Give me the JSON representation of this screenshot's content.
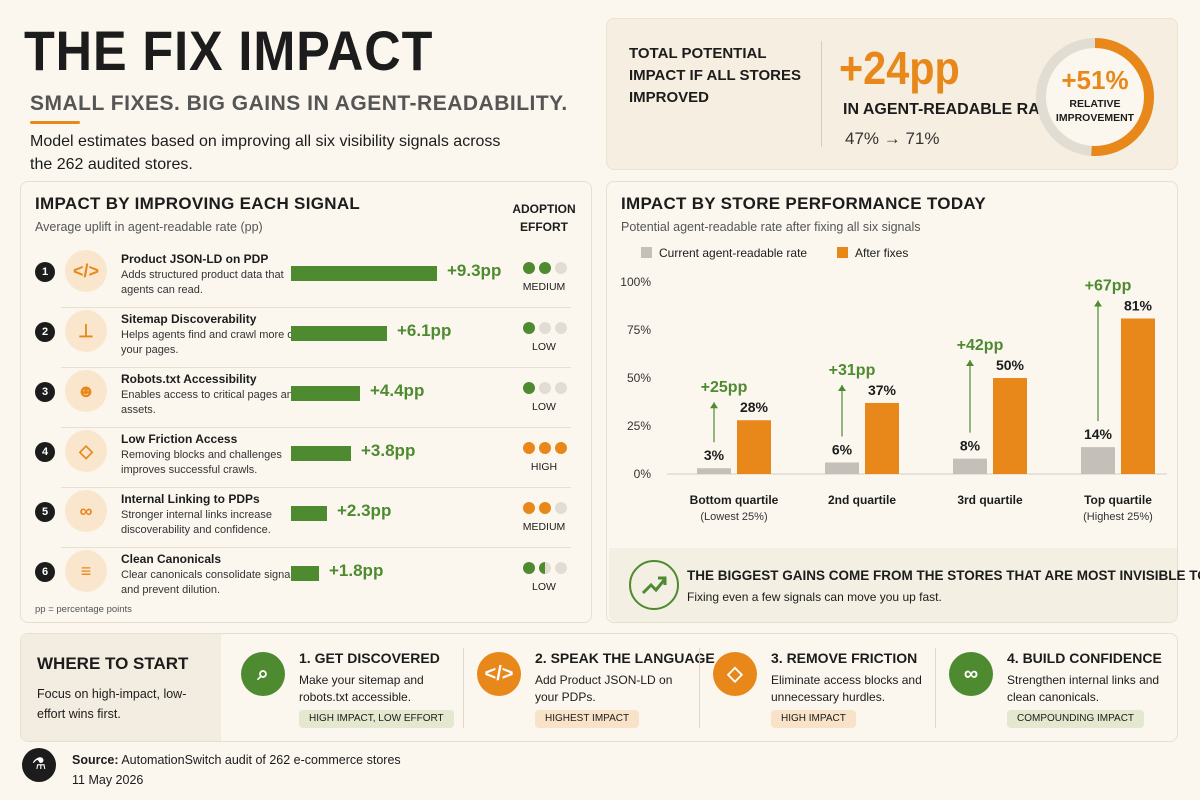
{
  "header": {
    "title": "THE FIX IMPACT",
    "subtitle": "SMALL FIXES. BIG GAINS IN AGENT-READABILITY.",
    "intro": "Model estimates based on improving all six visibility signals across the 262 audited stores."
  },
  "total": {
    "label": "TOTAL POTENTIAL IMPACT IF ALL STORES IMPROVED",
    "value": "+24pp",
    "rate_label": "IN AGENT-READABLE RATE",
    "change": "47% → 71%",
    "relative_value": "+51%",
    "relative_label": "RELATIVE IMPROVEMENT",
    "relative_fraction": 0.51
  },
  "signals": {
    "title": "IMPACT BY IMPROVING EACH SIGNAL",
    "subtitle": "Average uplift in agent-readable rate (pp)",
    "effort_header": "ADOPTION EFFORT",
    "footnote": "pp = percentage points",
    "items": [
      {
        "num": "1",
        "icon": "code-icon",
        "glyph": "</>",
        "name": "Product JSON-LD on PDP",
        "desc": "Adds structured product data that agents can read.",
        "value": 9.3,
        "label": "+9.3pp",
        "effort": "MEDIUM",
        "effort_level": 2,
        "effort_color": "#4e8a30"
      },
      {
        "num": "2",
        "icon": "sitemap-icon",
        "glyph": "⊥",
        "name": "Sitemap Discoverability",
        "desc": "Helps agents find and crawl more of your pages.",
        "value": 6.1,
        "label": "+6.1pp",
        "effort": "LOW",
        "effort_level": 1,
        "effort_color": "#4e8a30"
      },
      {
        "num": "3",
        "icon": "robot-icon",
        "glyph": "☻",
        "name": "Robots.txt Accessibility",
        "desc": "Enables access to critical pages and assets.",
        "value": 4.4,
        "label": "+4.4pp",
        "effort": "LOW",
        "effort_level": 1,
        "effort_color": "#4e8a30"
      },
      {
        "num": "4",
        "icon": "shield-icon",
        "glyph": "◇",
        "name": "Low Friction Access",
        "desc": "Removing blocks and challenges improves successful crawls.",
        "value": 3.8,
        "label": "+3.8pp",
        "effort": "HIGH",
        "effort_level": 3,
        "effort_color": "#e8881a"
      },
      {
        "num": "5",
        "icon": "link-icon",
        "glyph": "∞",
        "name": "Internal Linking to PDPs",
        "desc": "Stronger internal links increase discoverability and confidence.",
        "value": 2.3,
        "label": "+2.3pp",
        "effort": "MEDIUM",
        "effort_level": 2,
        "effort_color": "#e8881a"
      },
      {
        "num": "6",
        "icon": "document-icon",
        "glyph": "≡",
        "name": "Clean Canonicals",
        "desc": "Clear canonicals consolidate signals and prevent dilution.",
        "value": 1.8,
        "label": "+1.8pp",
        "effort": "LOW",
        "effort_level": 1.5,
        "effort_color": "#4e8a30"
      }
    ]
  },
  "performance": {
    "title": "IMPACT BY STORE PERFORMANCE TODAY",
    "subtitle": "Potential agent-readable rate after fixing all six signals",
    "callout_head": "THE BIGGEST GAINS COME FROM THE STORES THAT ARE MOST INVISIBLE TODAY.",
    "callout_text": "Fixing even a few signals can move you up fast."
  },
  "chart_data": {
    "type": "bar",
    "categories": [
      "Bottom quartile",
      "2nd quartile",
      "3rd quartile",
      "Top quartile"
    ],
    "category_sublabels": [
      "(Lowest 25%)",
      "",
      "",
      "(Highest 25%)"
    ],
    "series": [
      {
        "name": "Current agent-readable rate",
        "values": [
          3,
          6,
          8,
          14
        ],
        "color": "#c4bfb8"
      },
      {
        "name": "After fixes",
        "values": [
          28,
          37,
          50,
          81
        ],
        "color": "#e8881a"
      }
    ],
    "uplift_labels": [
      "+25pp",
      "+31pp",
      "+42pp",
      "+67pp"
    ],
    "yticks": [
      "0%",
      "25%",
      "50%",
      "75%",
      "100%"
    ],
    "ylim": [
      0,
      100
    ],
    "legend": "top-left",
    "grid": false
  },
  "start": {
    "title": "WHERE TO START",
    "text": "Focus on high-impact, low-effort wins first.",
    "steps": [
      {
        "icon": "search-icon",
        "glyph": "⌕",
        "color": "#4e8a30",
        "title": "1. GET DISCOVERED",
        "text": "Make your sitemap and robots.txt accessible.",
        "tag": "HIGH IMPACT, LOW EFFORT",
        "tag_bg": "#e3e8cf"
      },
      {
        "icon": "code-icon",
        "glyph": "</>",
        "color": "#e8881a",
        "title": "2. SPEAK THE LANGUAGE",
        "text": "Add Product JSON-LD on your PDPs.",
        "tag": "HIGHEST IMPACT",
        "tag_bg": "#f8e2c8"
      },
      {
        "icon": "shield-icon",
        "glyph": "◇",
        "color": "#e8881a",
        "title": "3. REMOVE FRICTION",
        "text": "Eliminate access blocks and unnecessary hurdles.",
        "tag": "HIGH IMPACT",
        "tag_bg": "#f8e2c8"
      },
      {
        "icon": "link-icon",
        "glyph": "∞",
        "color": "#4e8a30",
        "title": "4. BUILD CONFIDENCE",
        "text": "Strengthen internal links and clean canonicals.",
        "tag": "COMPOUNDING IMPACT",
        "tag_bg": "#e3e8cf"
      }
    ]
  },
  "source": {
    "label": "Source:",
    "text": "AutomationSwitch audit of 262 e-commerce stores",
    "date": "11 May 2026"
  }
}
